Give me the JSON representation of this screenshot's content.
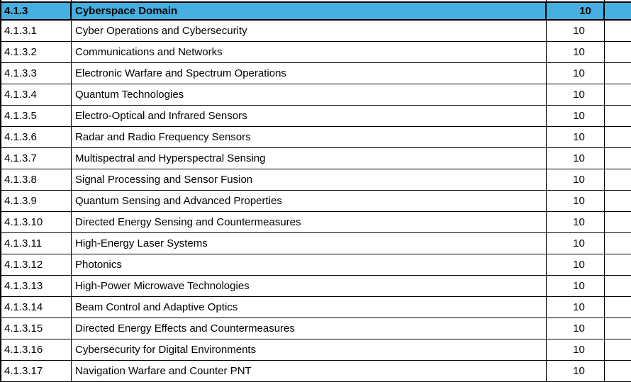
{
  "table": {
    "header": {
      "code": "4.1.3",
      "label": "Cyberspace Domain",
      "value": "10"
    },
    "rows": [
      {
        "code": "4.1.3.1",
        "label": "Cyber Operations and Cybersecurity",
        "value": "10"
      },
      {
        "code": "4.1.3.2",
        "label": "Communications and Networks",
        "value": "10"
      },
      {
        "code": "4.1.3.3",
        "label": "Electronic Warfare and Spectrum Operations",
        "value": "10"
      },
      {
        "code": "4.1.3.4",
        "label": "Quantum Technologies",
        "value": "10"
      },
      {
        "code": "4.1.3.5",
        "label": "Electro-Optical and Infrared Sensors",
        "value": "10"
      },
      {
        "code": "4.1.3.6",
        "label": "Radar and Radio Frequency Sensors",
        "value": "10"
      },
      {
        "code": "4.1.3.7",
        "label": "Multispectral and Hyperspectral Sensing",
        "value": "10"
      },
      {
        "code": "4.1.3.8",
        "label": "Signal Processing and Sensor Fusion",
        "value": "10"
      },
      {
        "code": "4.1.3.9",
        "label": "Quantum Sensing and Advanced Properties",
        "value": "10"
      },
      {
        "code": "4.1.3.10",
        "label": "Directed Energy Sensing and Countermeasures",
        "value": "10"
      },
      {
        "code": "4.1.3.11",
        "label": "High-Energy Laser Systems",
        "value": "10"
      },
      {
        "code": "4.1.3.12",
        "label": "Photonics",
        "value": "10"
      },
      {
        "code": "4.1.3.13",
        "label": "High-Power Microwave Technologies",
        "value": "10"
      },
      {
        "code": "4.1.3.14",
        "label": "Beam Control and Adaptive Optics",
        "value": "10"
      },
      {
        "code": "4.1.3.15",
        "label": "Directed Energy Effects and Countermeasures",
        "value": "10"
      },
      {
        "code": "4.1.3.16",
        "label": "Cybersecurity for Digital Environments",
        "value": "10"
      },
      {
        "code": "4.1.3.17",
        "label": "Navigation Warfare and Counter PNT",
        "value": "10"
      }
    ]
  },
  "colors": {
    "header_bg": "#45AFDF",
    "border": "#000000",
    "text": "#000000",
    "row_bg": "#FFFFFF"
  }
}
